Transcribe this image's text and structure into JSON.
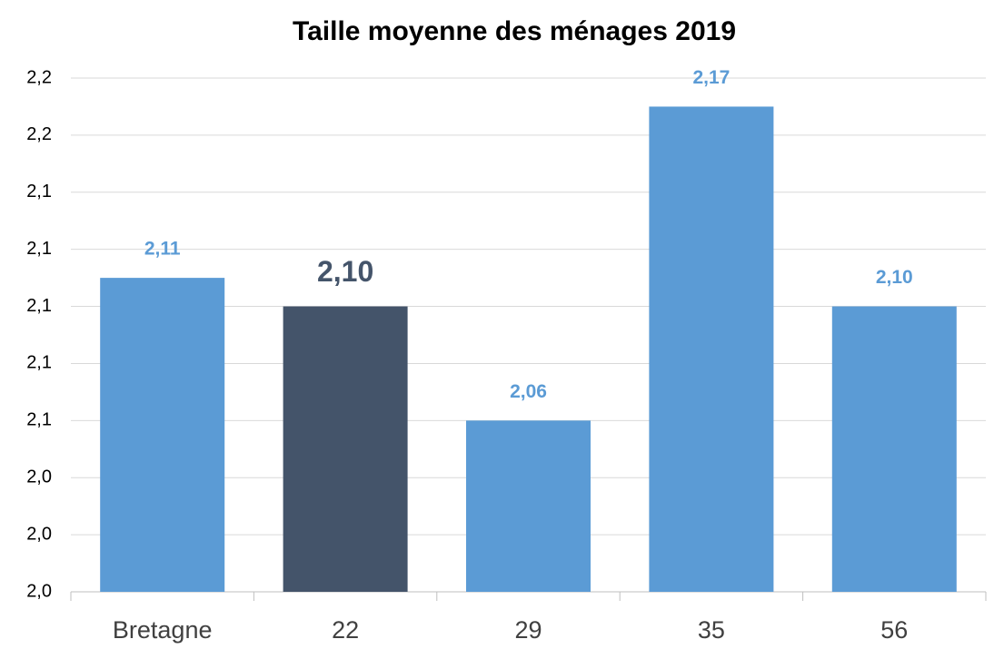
{
  "chart_data": {
    "type": "bar",
    "title": "Taille moyenne des ménages 2019",
    "categories": [
      "Bretagne",
      "22",
      "29",
      "35",
      "56"
    ],
    "values": [
      2.11,
      2.1,
      2.06,
      2.17,
      2.1
    ],
    "value_labels": [
      "2,11",
      "2,10",
      "2,06",
      "2,17",
      "2,10"
    ],
    "colors": [
      "#5b9bd5",
      "#44546a",
      "#5b9bd5",
      "#5b9bd5",
      "#5b9bd5"
    ],
    "ylim": [
      2.0,
      2.18
    ],
    "yticks": [
      {
        "value": 2.0,
        "label": "2,0"
      },
      {
        "value": 2.02,
        "label": "2,0"
      },
      {
        "value": 2.04,
        "label": "2,0"
      },
      {
        "value": 2.06,
        "label": "2,1"
      },
      {
        "value": 2.08,
        "label": "2,1"
      },
      {
        "value": 2.1,
        "label": "2,1"
      },
      {
        "value": 2.12,
        "label": "2,1"
      },
      {
        "value": 2.14,
        "label": "2,1"
      },
      {
        "value": 2.16,
        "label": "2,2"
      },
      {
        "value": 2.18,
        "label": "2,2"
      }
    ],
    "grid": true
  }
}
